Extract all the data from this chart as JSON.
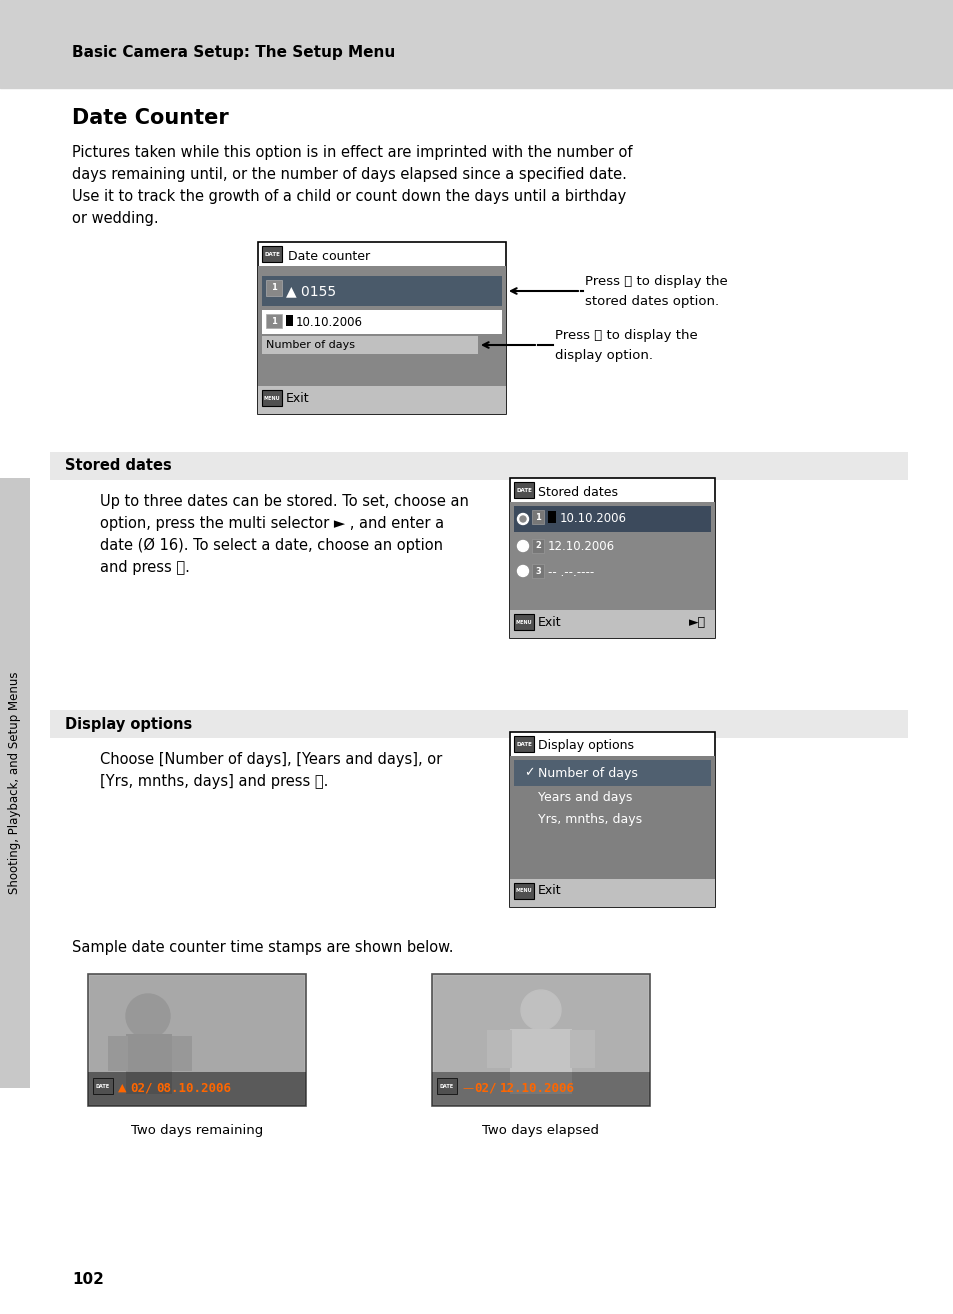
{
  "page_bg": "#ffffff",
  "header_bg": "#d0d0d0",
  "header_text": "Basic Camera Setup: The Setup Menu",
  "title": "Date Counter",
  "body_text_1": "Pictures taken while this option is in effect are imprinted with the number of\ndays remaining until, or the number of days elapsed since a specified date.\nUse it to track the growth of a child or count down the days until a birthday\nor wedding.",
  "section1_header": "Stored dates",
  "section1_body": "Up to three dates can be stored. To set, choose an\noption, press the multi selector ► , and enter a\ndate (Ø 16). To select a date, choose an option\nand press ⒪.",
  "section2_header": "Display options",
  "section2_body": "Choose [Number of days], [Years and days], or\n[Yrs, mnths, days] and press ⒪.",
  "sample_text": "Sample date counter time stamps are shown below.",
  "caption1": "Two days remaining",
  "caption2": "Two days elapsed",
  "sidebar_text": "Shooting, Playback, and Setup Menus",
  "page_number": "102",
  "section_bg": "#e8e8e8",
  "menu_body_bg": "#878787",
  "menu_highlight_dark": "#4a5a6a",
  "menu_bar_bg": "#c0c0c0",
  "menu_border": "#000000",
  "white": "#ffffff",
  "black": "#000000",
  "dark_gray": "#505050",
  "sidebar_bg": "#c8c8c8",
  "orange": "#ff6600",
  "stored_row1_bg": "#3c4a5c",
  "display_row1_bg": "#506070"
}
